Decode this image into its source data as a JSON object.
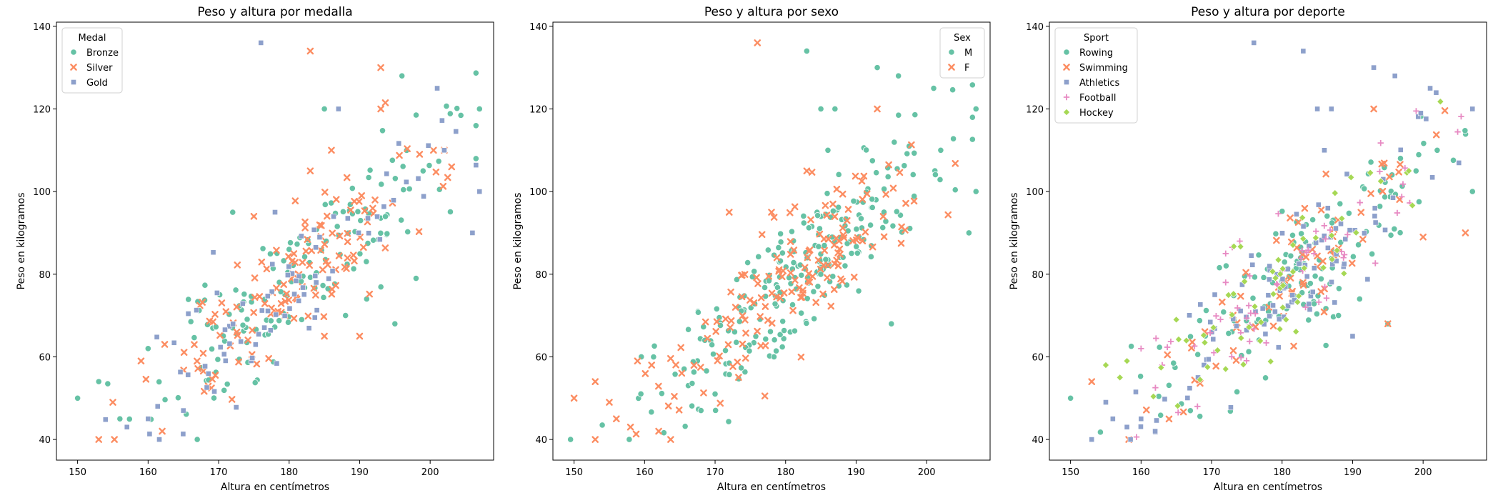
{
  "chart_data": [
    {
      "type": "scatter",
      "title": "Peso y altura por medalla",
      "xlabel": "Altura en centímetros",
      "ylabel": "Peso en kilogramos",
      "xlim": [
        147,
        209
      ],
      "ylim": [
        35,
        141
      ],
      "xticks": [
        150,
        160,
        170,
        180,
        190,
        200
      ],
      "yticks": [
        40,
        60,
        80,
        100,
        120,
        140
      ],
      "legend": {
        "title": "Medal",
        "position": "upper-left"
      },
      "series": [
        {
          "name": "Bronze",
          "marker": "circle",
          "color": "#66c2a5",
          "seed": 11,
          "count": 150,
          "points": [
            [
              150,
              50
            ],
            [
              153,
              54
            ],
            [
              156,
              45
            ],
            [
              160,
              62
            ],
            [
              172,
              95
            ],
            [
              185,
              120
            ],
            [
              196,
              128
            ],
            [
              207,
              120
            ],
            [
              199,
              105
            ],
            [
              195,
              68
            ],
            [
              198,
              79
            ],
            [
              191,
              74
            ],
            [
              188,
              70
            ],
            [
              180,
              86
            ]
          ]
        },
        {
          "name": "Silver",
          "marker": "x",
          "color": "#fc8d62",
          "seed": 23,
          "count": 130,
          "points": [
            [
              153,
              40
            ],
            [
              155,
              49
            ],
            [
              162,
              42
            ],
            [
              159,
              59
            ],
            [
              183,
              134
            ],
            [
              193,
              130
            ],
            [
              193,
              120
            ],
            [
              186,
              110
            ],
            [
              183,
              105
            ],
            [
              202,
              110
            ],
            [
              175,
              94
            ],
            [
              190,
              65
            ],
            [
              185,
              65
            ]
          ]
        },
        {
          "name": "Gold",
          "marker": "square",
          "color": "#8da0cb",
          "seed": 37,
          "count": 80,
          "points": [
            [
              176,
              136
            ],
            [
              187,
              120
            ],
            [
              201,
              125
            ],
            [
              202,
              110
            ],
            [
              207,
              100
            ],
            [
              206,
              90
            ],
            [
              157,
              43
            ],
            [
              160,
              45
            ],
            [
              165,
              47
            ],
            [
              178,
              95
            ]
          ]
        }
      ]
    },
    {
      "type": "scatter",
      "title": "Peso y altura por sexo",
      "xlabel": "Altura en centímetros",
      "ylabel": "Peso en kilogramos",
      "xlim": [
        147,
        209
      ],
      "ylim": [
        35,
        141
      ],
      "xticks": [
        150,
        160,
        170,
        180,
        190,
        200
      ],
      "yticks": [
        40,
        60,
        80,
        100,
        120,
        140
      ],
      "legend": {
        "title": "Sex",
        "position": "upper-right"
      },
      "series": [
        {
          "name": "M",
          "marker": "circle",
          "color": "#66c2a5",
          "seed": 53,
          "count": 240,
          "points": [
            [
              183,
              134
            ],
            [
              193,
              130
            ],
            [
              196,
              128
            ],
            [
              201,
              125
            ],
            [
              185,
              120
            ],
            [
              187,
              120
            ],
            [
              207,
              120
            ],
            [
              186,
              110
            ],
            [
              202,
              110
            ],
            [
              207,
              100
            ],
            [
              206,
              90
            ],
            [
              168,
              47
            ],
            [
              170,
              51
            ],
            [
              195,
              68
            ]
          ]
        },
        {
          "name": "F",
          "marker": "x",
          "color": "#fc8d62",
          "seed": 71,
          "count": 150,
          "points": [
            [
              176,
              136
            ],
            [
              193,
              120
            ],
            [
              183,
              105
            ],
            [
              150,
              50
            ],
            [
              153,
              40
            ],
            [
              153,
              54
            ],
            [
              155,
              49
            ],
            [
              156,
              45
            ],
            [
              158,
              43
            ],
            [
              162,
              42
            ],
            [
              159,
              59
            ],
            [
              161,
              58
            ],
            [
              172,
              95
            ],
            [
              178,
              95
            ]
          ]
        }
      ]
    },
    {
      "type": "scatter",
      "title": "Peso y altura por deporte",
      "xlabel": "Altura en centímetros",
      "ylabel": "Peso en kilogramos",
      "xlim": [
        147,
        209
      ],
      "ylim": [
        35,
        141
      ],
      "xticks": [
        150,
        160,
        170,
        180,
        190,
        200
      ],
      "yticks": [
        40,
        60,
        80,
        100,
        120,
        140
      ],
      "legend": {
        "title": "Sport",
        "position": "upper-left"
      },
      "series": [
        {
          "name": "Rowing",
          "marker": "circle",
          "color": "#66c2a5",
          "seed": 89,
          "count": 140,
          "points": [
            [
              150,
              50
            ],
            [
              202,
              110
            ],
            [
              207,
              100
            ],
            [
              199,
              105
            ],
            [
              195,
              68
            ],
            [
              191,
              74
            ],
            [
              188,
              70
            ]
          ]
        },
        {
          "name": "Swimming",
          "marker": "x",
          "color": "#fc8d62",
          "seed": 97,
          "count": 70,
          "points": [
            [
              153,
              54
            ],
            [
              193,
              120
            ],
            [
              206,
              90
            ],
            [
              195,
              68
            ],
            [
              200,
              89
            ]
          ]
        },
        {
          "name": "Athletics",
          "marker": "square",
          "color": "#8da0cb",
          "seed": 113,
          "count": 100,
          "points": [
            [
              176,
              136
            ],
            [
              183,
              134
            ],
            [
              193,
              130
            ],
            [
              196,
              128
            ],
            [
              201,
              125
            ],
            [
              185,
              120
            ],
            [
              187,
              120
            ],
            [
              207,
              120
            ],
            [
              186,
              110
            ],
            [
              153,
              40
            ],
            [
              155,
              49
            ],
            [
              156,
              45
            ],
            [
              158,
              43
            ],
            [
              162,
              42
            ],
            [
              160,
              45
            ],
            [
              190,
              65
            ]
          ]
        },
        {
          "name": "Football",
          "marker": "plus",
          "color": "#e78ac3",
          "seed": 131,
          "count": 60,
          "points": [
            [
              160,
              62
            ],
            [
              163,
              58
            ],
            [
              168,
              48
            ],
            [
              172,
              85
            ],
            [
              174,
              88
            ],
            [
              172,
              78
            ]
          ]
        },
        {
          "name": "Hockey",
          "marker": "diamond",
          "color": "#a6d854",
          "seed": 149,
          "count": 60,
          "points": [
            [
              155,
              58
            ],
            [
              157,
              55
            ],
            [
              158,
              59
            ],
            [
              165,
              69
            ]
          ]
        }
      ]
    }
  ]
}
